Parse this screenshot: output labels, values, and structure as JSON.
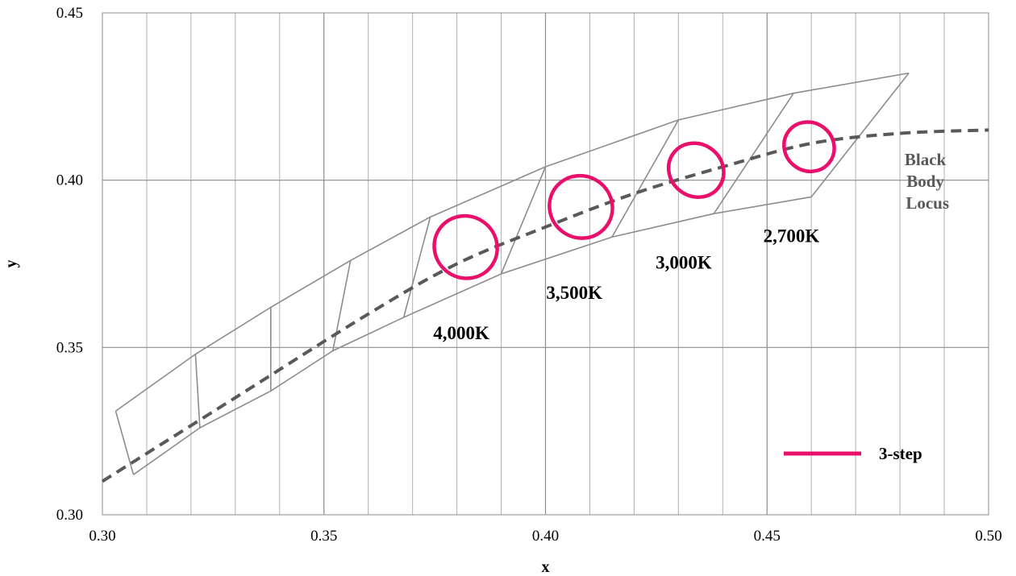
{
  "chart_data": {
    "type": "scatter",
    "title": "",
    "xlabel": "x",
    "ylabel": "y",
    "xlim": [
      0.3,
      0.5
    ],
    "ylim": [
      0.3,
      0.45
    ],
    "x_ticks": [
      "0.30",
      "0.35",
      "0.40",
      "0.45",
      "0.50"
    ],
    "y_ticks": [
      "0.30",
      "0.35",
      "0.40",
      "0.45"
    ],
    "grid": {
      "major_x_step": 0.05,
      "minor_x_step": 0.01,
      "major_y_step": 0.05
    },
    "colors": {
      "quad": "#8c8c8c",
      "locus": "#595959",
      "ellipse": "#ea0f6b",
      "grid": "#b0b0b0"
    },
    "quadrangles_upper": [
      [
        0.303,
        0.331
      ],
      [
        0.321,
        0.348
      ],
      [
        0.338,
        0.362
      ],
      [
        0.356,
        0.376
      ],
      [
        0.374,
        0.389
      ],
      [
        0.4,
        0.404
      ],
      [
        0.43,
        0.418
      ],
      [
        0.456,
        0.426
      ],
      [
        0.482,
        0.432
      ]
    ],
    "quadrangles_lower": [
      [
        0.307,
        0.312
      ],
      [
        0.322,
        0.326
      ],
      [
        0.338,
        0.337
      ],
      [
        0.352,
        0.349
      ],
      [
        0.368,
        0.359
      ],
      [
        0.39,
        0.372
      ],
      [
        0.415,
        0.383
      ],
      [
        0.438,
        0.39
      ],
      [
        0.46,
        0.395
      ]
    ],
    "black_body_locus": [
      [
        0.3,
        0.31
      ],
      [
        0.33,
        0.335
      ],
      [
        0.36,
        0.36
      ],
      [
        0.38,
        0.375
      ],
      [
        0.4,
        0.386
      ],
      [
        0.42,
        0.396
      ],
      [
        0.44,
        0.404
      ],
      [
        0.46,
        0.411
      ],
      [
        0.48,
        0.414
      ],
      [
        0.5,
        0.415
      ]
    ],
    "ellipses": [
      {
        "label": "4,000K",
        "cx": 0.382,
        "cy": 0.38,
        "rx": 0.0072,
        "ry": 0.0092
      },
      {
        "label": "3,500K",
        "cx": 0.408,
        "cy": 0.392,
        "rx": 0.0072,
        "ry": 0.0092
      },
      {
        "label": "3,000K",
        "cx": 0.434,
        "cy": 0.403,
        "rx": 0.0064,
        "ry": 0.0078
      },
      {
        "label": "2,700K",
        "cx": 0.4595,
        "cy": 0.41,
        "rx": 0.0058,
        "ry": 0.0072
      }
    ],
    "annotations": {
      "cct_labels": [
        {
          "text": "4,000K",
          "x": 0.381,
          "y": 0.3525
        },
        {
          "text": "3,500K",
          "x": 0.4065,
          "y": 0.3645
        },
        {
          "text": "3,000K",
          "x": 0.4312,
          "y": 0.3735
        },
        {
          "text": "2,700K",
          "x": 0.4555,
          "y": 0.3815
        }
      ],
      "locus_label": [
        "Black",
        "Body",
        "Locus"
      ],
      "locus_label_pos": {
        "x": 0.4862,
        "y": 0.4045
      }
    },
    "legend": {
      "position": "bottom-right",
      "entries": [
        {
          "name": "3-step",
          "color": "#ea0f6b"
        }
      ]
    }
  }
}
